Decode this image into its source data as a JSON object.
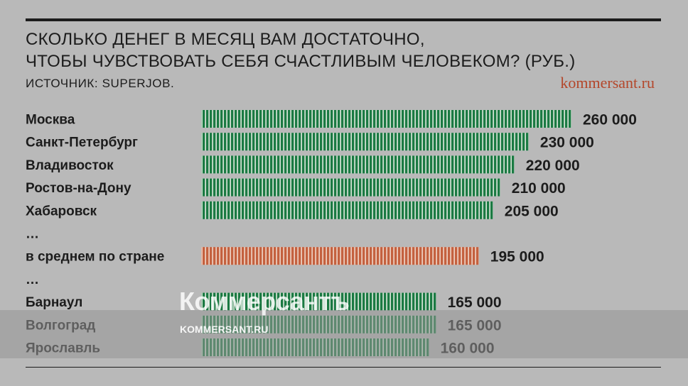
{
  "title_line1": "Сколько денег в месяц вам достаточно,",
  "title_line2": "чтобы чувствовать себя счастливым человеком? (руб.)",
  "source": "ИСТОЧНИК: SUPERJOB.",
  "site": "kommersant.ru",
  "watermark": {
    "logo": "Коммерсантъ",
    "url": "KOMMERSANT.RU"
  },
  "colors": {
    "city_bar": "#1b7a43",
    "average_bar": "#c4613f",
    "background": "#b9b9b9",
    "site_text": "#b4472b"
  },
  "chart_data": {
    "type": "bar",
    "orientation": "horizontal",
    "title": "Сколько денег в месяц вам достаточно, чтобы чувствовать себя счастливым человеком? (руб.)",
    "rows": [
      {
        "label": "Москва",
        "value": 260000,
        "value_label": "260 000",
        "kind": "city"
      },
      {
        "label": "Санкт-Петербург",
        "value": 230000,
        "value_label": "230 000",
        "kind": "city"
      },
      {
        "label": "Владивосток",
        "value": 220000,
        "value_label": "220 000",
        "kind": "city"
      },
      {
        "label": "Ростов-на-Дону",
        "value": 210000,
        "value_label": "210 000",
        "kind": "city"
      },
      {
        "label": "Хабаровск",
        "value": 205000,
        "value_label": "205 000",
        "kind": "city"
      },
      {
        "label": "…",
        "kind": "gap"
      },
      {
        "label": "в среднем по стране",
        "value": 195000,
        "value_label": "195 000",
        "kind": "average"
      },
      {
        "label": "…",
        "kind": "gap"
      },
      {
        "label": "Барнаул",
        "value": 165000,
        "value_label": "165 000",
        "kind": "city"
      },
      {
        "label": "Волгоград",
        "value": 165000,
        "value_label": "165 000",
        "kind": "city"
      },
      {
        "label": "Ярославль",
        "value": 160000,
        "value_label": "160 000",
        "kind": "city"
      }
    ]
  }
}
